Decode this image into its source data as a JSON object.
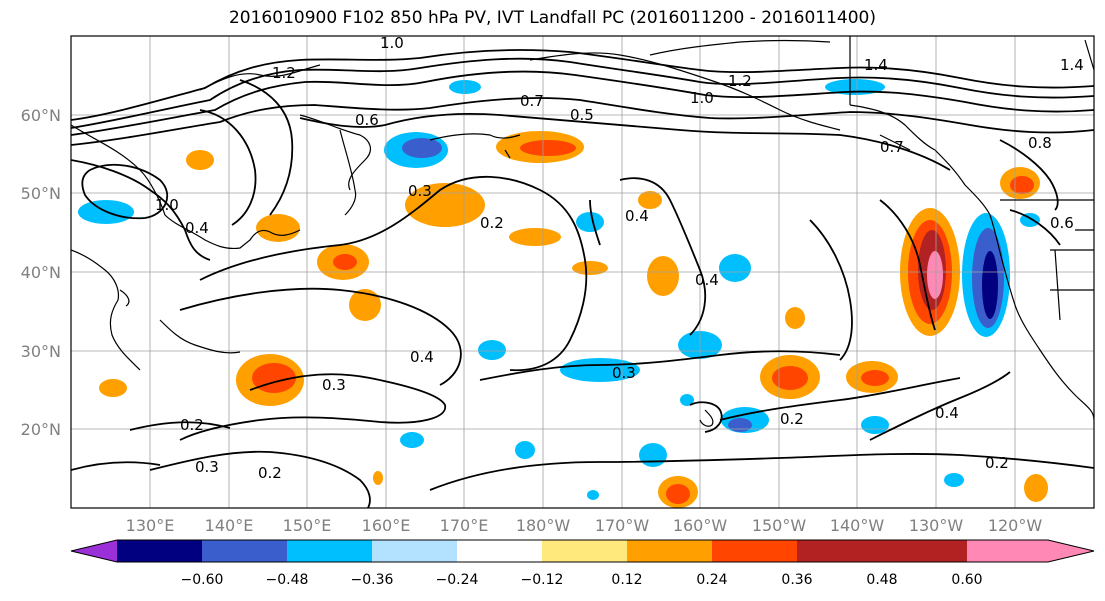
{
  "title": "2016010900 F102 850 hPa PV, IVT Landfall PC (2016011200 - 2016011400)",
  "lat_labels": [
    "60°N",
    "50°N",
    "40°N",
    "30°N",
    "20°N"
  ],
  "lon_labels": [
    "130°E",
    "140°E",
    "150°E",
    "160°E",
    "170°E",
    "180°W",
    "170°W",
    "160°W",
    "150°W",
    "140°W",
    "130°W",
    "120°W"
  ],
  "contour_labels": [
    "1.0",
    "1.2",
    "1.4",
    "1.0",
    "1.2",
    "1.4",
    "0.6",
    "0.7",
    "0.5",
    "0.7",
    "0.8",
    "0.6",
    "0.3",
    "0.2",
    "0.4",
    "0.4",
    "0.4",
    "0.3",
    "0.3",
    "0.2",
    "0.2",
    "0.4",
    "0.2",
    "0.3",
    "0.2",
    "1.0",
    "0.4"
  ],
  "colorbar": {
    "tick_labels": [
      "−0.60",
      "−0.48",
      "−0.36",
      "−0.24",
      "−0.12",
      "0.12",
      "0.24",
      "0.36",
      "0.48",
      "0.60"
    ],
    "colors": [
      "#9b30d8",
      "#000080",
      "#3a5fcd",
      "#00bfff",
      "#b2e2ff",
      "#ffffff",
      "#ffe87c",
      "#ffa000",
      "#ff4500",
      "#b22222",
      "#ff88b4"
    ]
  },
  "colors": {
    "contour": "#000000",
    "coast": "#000000",
    "grid": "#a0a0a0",
    "axis_label": "#808080"
  }
}
